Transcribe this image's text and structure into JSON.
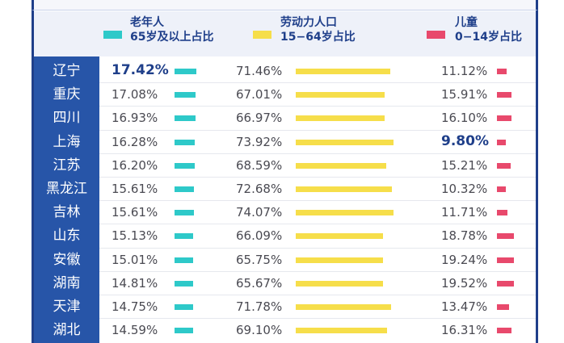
{
  "chart_data": {
    "type": "bar",
    "categories": [
      "辽宁",
      "重庆",
      "四川",
      "上海",
      "江苏",
      "黑龙江",
      "吉林",
      "山东",
      "安徽",
      "湖南",
      "天津",
      "湖北"
    ],
    "series": [
      {
        "name_line1": "老年人",
        "name_line2": "65岁及以上占比",
        "color": "#2ec9c9",
        "values": [
          17.42,
          17.08,
          16.93,
          16.28,
          16.2,
          15.61,
          15.61,
          15.13,
          15.01,
          14.81,
          14.75,
          14.59
        ],
        "labels": [
          "17.42%",
          "17.08%",
          "16.93%",
          "16.28%",
          "16.20%",
          "15.61%",
          "15.61%",
          "15.13%",
          "15.01%",
          "14.81%",
          "14.75%",
          "14.59%"
        ]
      },
      {
        "name_line1": "劳动力人口",
        "name_line2": "15−64岁占比",
        "color": "#f6de4a",
        "values": [
          71.46,
          67.01,
          66.97,
          73.92,
          68.59,
          72.68,
          74.07,
          66.09,
          65.75,
          65.67,
          71.78,
          69.1
        ],
        "labels": [
          "71.46%",
          "67.01%",
          "66.97%",
          "73.92%",
          "68.59%",
          "72.68%",
          "74.07%",
          "66.09%",
          "65.75%",
          "65.67%",
          "71.78%",
          "69.10%"
        ]
      },
      {
        "name_line1": "儿童",
        "name_line2": "0−14岁占比",
        "color": "#e8496c",
        "values": [
          11.12,
          15.91,
          16.1,
          9.8,
          15.21,
          10.32,
          11.71,
          18.78,
          19.24,
          19.52,
          13.47,
          16.31
        ],
        "labels": [
          "11.12%",
          "15.91%",
          "16.10%",
          "9.80%",
          "15.21%",
          "10.32%",
          "11.71%",
          "18.78%",
          "19.24%",
          "19.52%",
          "13.47%",
          "16.31%"
        ]
      }
    ],
    "highlighted": [
      {
        "series": 0,
        "category": 0
      },
      {
        "series": 2,
        "category": 3
      }
    ],
    "legend_position": "top",
    "grid": true
  }
}
